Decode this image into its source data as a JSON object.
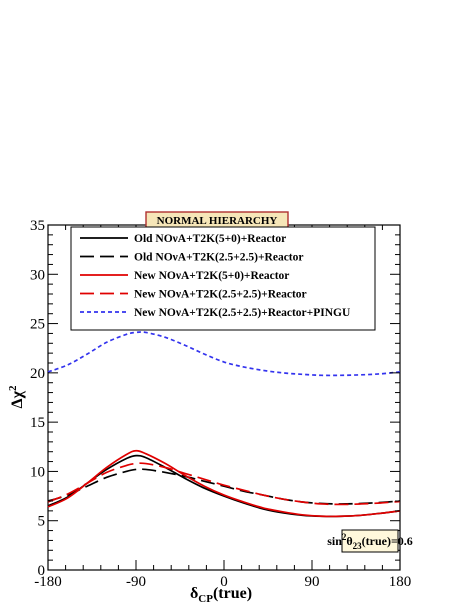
{
  "chart_data": {
    "type": "line",
    "title": "NORMAL HIERARCHY",
    "xlabel_main": "δ",
    "xlabel_sub": "CP",
    "xlabel_tail": "(true)",
    "ylabel_main": "Δχ",
    "ylabel_sup": "2",
    "xlim": [
      -180,
      180
    ],
    "ylim": [
      0,
      35
    ],
    "xticks": [
      -180,
      -90,
      0,
      90,
      180
    ],
    "xtick_labels": [
      "-180",
      "-90",
      "0",
      "90",
      "180"
    ],
    "yticks": [
      0,
      5,
      10,
      15,
      20,
      25,
      30,
      35
    ],
    "ytick_labels": [
      "0",
      "5",
      "10",
      "15",
      "20",
      "25",
      "30",
      "35"
    ],
    "annotation": {
      "pre": "sin",
      "sup": "2",
      "mid": "θ",
      "sub": "23",
      "post": "(true)=0.6"
    },
    "legend_position": "top-center",
    "x": [
      -180,
      -160,
      -140,
      -120,
      -100,
      -90,
      -80,
      -60,
      -40,
      -20,
      0,
      20,
      40,
      60,
      80,
      100,
      120,
      140,
      160,
      180
    ],
    "series": [
      {
        "name": "Old NOνA+T2K(5+0)+Reactor",
        "color": "#000000",
        "dash": "solid",
        "values": [
          6.5,
          7.4,
          8.8,
          10.2,
          11.3,
          11.6,
          11.4,
          10.4,
          9.3,
          8.3,
          7.5,
          6.8,
          6.2,
          5.8,
          5.55,
          5.45,
          5.45,
          5.55,
          5.75,
          6.0
        ]
      },
      {
        "name": "Old NOνA+T2K(2.5+2.5)+Reactor",
        "color": "#000000",
        "dash": "long",
        "values": [
          7.0,
          7.6,
          8.5,
          9.4,
          10.0,
          10.2,
          10.2,
          9.9,
          9.5,
          9.0,
          8.5,
          8.0,
          7.6,
          7.2,
          6.9,
          6.75,
          6.7,
          6.75,
          6.85,
          7.0
        ]
      },
      {
        "name": "New NOνA+T2K(5+0)+Reactor",
        "color": "#e00000",
        "dash": "solid",
        "values": [
          6.4,
          7.3,
          8.8,
          10.4,
          11.7,
          12.1,
          11.8,
          10.8,
          9.6,
          8.5,
          7.6,
          6.9,
          6.3,
          5.9,
          5.6,
          5.45,
          5.45,
          5.55,
          5.75,
          6.0
        ]
      },
      {
        "name": "New NOνA+T2K(2.5+2.5)+Reactor",
        "color": "#e00000",
        "dash": "long",
        "values": [
          6.9,
          7.7,
          8.8,
          9.9,
          10.6,
          10.8,
          10.8,
          10.4,
          9.8,
          9.2,
          8.6,
          8.1,
          7.6,
          7.2,
          6.9,
          6.7,
          6.65,
          6.7,
          6.8,
          6.95
        ]
      },
      {
        "name": "New NOνA+T2K(2.5+2.5)+Reactor+PINGU",
        "color": "#3333ee",
        "dash": "short",
        "values": [
          20.1,
          20.8,
          21.9,
          23.1,
          23.9,
          24.1,
          24.1,
          23.6,
          22.8,
          21.9,
          21.1,
          20.6,
          20.25,
          20.0,
          19.85,
          19.75,
          19.75,
          19.8,
          19.9,
          20.1
        ]
      }
    ]
  }
}
